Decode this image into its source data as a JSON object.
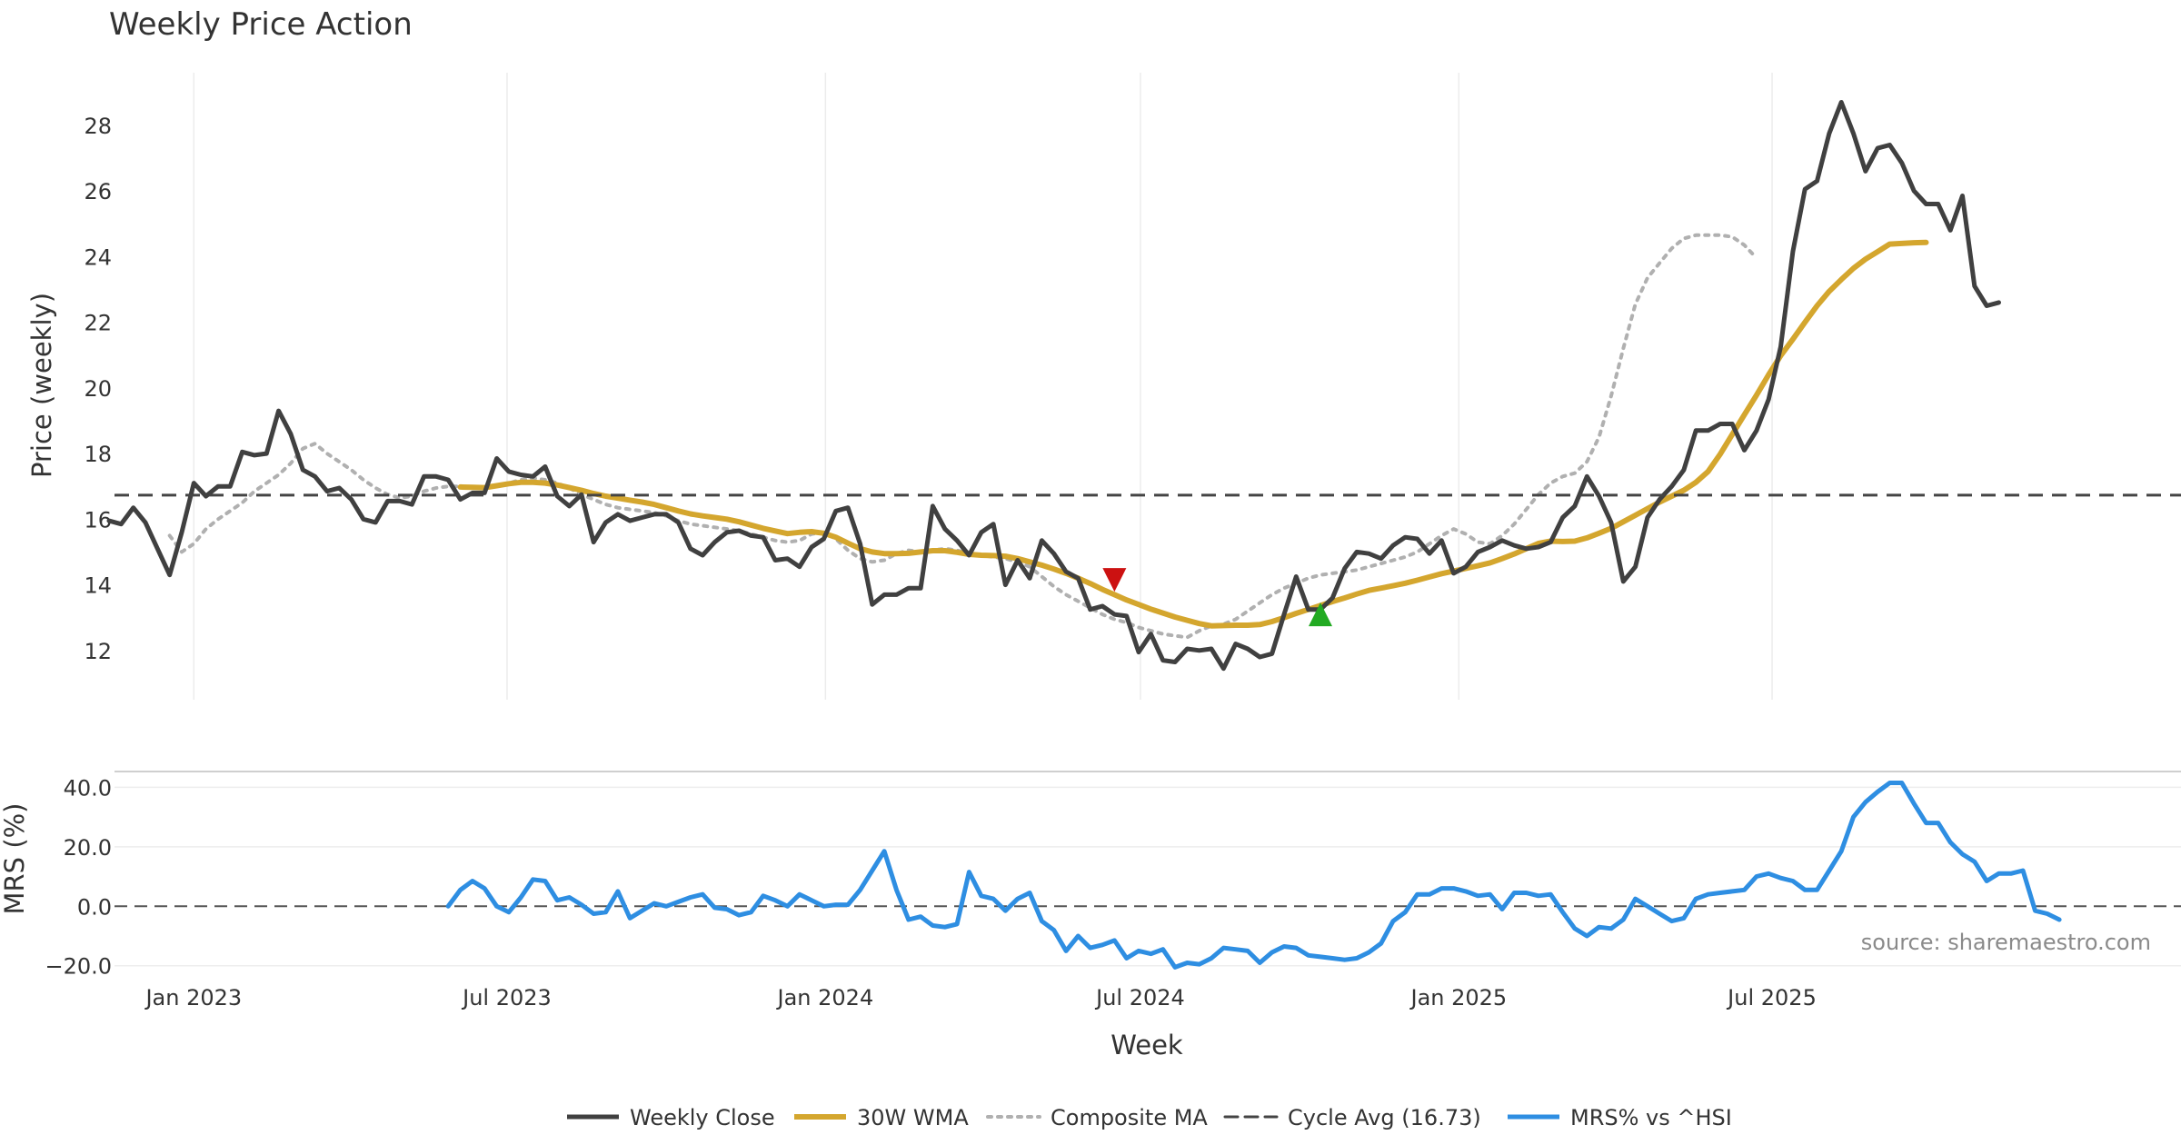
{
  "chart_data": [
    {
      "type": "line",
      "title": "Weekly Price Action",
      "ylabel": "Price (weekly)",
      "xlabel": "Week",
      "ylim": [
        10.5,
        29.6
      ],
      "yticks": [
        12,
        14,
        16,
        18,
        20,
        22,
        24,
        26,
        28
      ],
      "grid": "vertical",
      "x_start": "2022-11-13",
      "x_step_days": 7,
      "x_month_ticks": [
        {
          "label": "Jan 2023",
          "date": "2023-01-01"
        },
        {
          "label": "Jul 2023",
          "date": "2023-07-01"
        },
        {
          "label": "Jan 2024",
          "date": "2024-01-01"
        },
        {
          "label": "Jul 2024",
          "date": "2024-07-01"
        },
        {
          "label": "Jan 2025",
          "date": "2025-01-01"
        },
        {
          "label": "Jul 2025",
          "date": "2025-07-01"
        }
      ],
      "series": [
        {
          "name": "Weekly Close",
          "color": "#404040",
          "values": [
            15.95,
            15.85,
            16.35,
            15.9,
            15.1,
            14.3,
            15.6,
            17.1,
            16.7,
            17.0,
            17.0,
            18.05,
            17.95,
            18.0,
            19.3,
            18.6,
            17.5,
            17.3,
            16.85,
            16.95,
            16.6,
            16.0,
            15.9,
            16.55,
            16.55,
            16.45,
            17.3,
            17.3,
            17.2,
            16.6,
            16.8,
            16.8,
            17.85,
            17.45,
            17.35,
            17.3,
            17.6,
            16.7,
            16.4,
            16.75,
            15.3,
            15.9,
            16.15,
            15.95,
            16.05,
            16.15,
            16.15,
            15.9,
            15.1,
            14.9,
            15.3,
            15.6,
            15.65,
            15.5,
            15.45,
            14.75,
            14.8,
            14.55,
            15.15,
            15.4,
            16.25,
            16.35,
            15.25,
            13.4,
            13.7,
            13.7,
            13.9,
            13.9,
            16.4,
            15.7,
            15.35,
            14.9,
            15.6,
            15.85,
            14.0,
            14.75,
            14.2,
            15.35,
            14.95,
            14.4,
            14.2,
            13.25,
            13.35,
            13.1,
            13.05,
            11.95,
            12.5,
            11.7,
            11.65,
            12.05,
            12.0,
            12.05,
            11.45,
            12.2,
            12.05,
            11.8,
            11.9,
            13.1,
            14.25,
            13.25,
            13.25,
            13.6,
            14.5,
            15.0,
            14.95,
            14.8,
            15.2,
            15.45,
            15.4,
            14.95,
            15.35,
            14.35,
            14.55,
            15.0,
            15.15,
            15.35,
            15.2,
            15.1,
            15.15,
            15.3,
            16.05,
            16.4,
            17.3,
            16.7,
            15.9,
            14.1,
            14.55,
            16.05,
            16.6,
            17.0,
            17.5,
            18.7,
            18.7,
            18.9,
            18.9,
            18.1,
            18.7,
            19.65,
            21.25,
            24.15,
            26.05,
            26.3,
            27.75,
            28.7,
            27.75,
            26.6,
            27.3,
            27.4,
            26.85,
            26.0,
            25.6,
            25.6,
            24.8,
            25.85,
            23.1,
            22.5,
            22.6
          ]
        },
        {
          "name": "30W WMA",
          "color": "#d4a62e",
          "offset": 29,
          "values": [
            16.98,
            16.97,
            16.96,
            17.02,
            17.08,
            17.12,
            17.12,
            17.1,
            17.04,
            16.96,
            16.88,
            16.78,
            16.7,
            16.64,
            16.58,
            16.52,
            16.45,
            16.35,
            16.25,
            16.16,
            16.1,
            16.05,
            16.0,
            15.92,
            15.82,
            15.72,
            15.64,
            15.56,
            15.6,
            15.62,
            15.57,
            15.45,
            15.27,
            15.1,
            15.0,
            14.95,
            14.95,
            14.96,
            15.0,
            15.04,
            15.04,
            14.99,
            14.93,
            14.9,
            14.89,
            14.87,
            14.8,
            14.7,
            14.6,
            14.48,
            14.35,
            14.2,
            14.04,
            13.86,
            13.7,
            13.54,
            13.4,
            13.26,
            13.14,
            13.02,
            12.92,
            12.82,
            12.75,
            12.76,
            12.77,
            12.77,
            12.79,
            12.88,
            13.0,
            13.13,
            13.25,
            13.37,
            13.49,
            13.6,
            13.72,
            13.83,
            13.9,
            13.97,
            14.05,
            14.14,
            14.24,
            14.34,
            14.42,
            14.5,
            14.58,
            14.67,
            14.8,
            14.94,
            15.1,
            15.26,
            15.33,
            15.32,
            15.33,
            15.43,
            15.57,
            15.72,
            15.92,
            16.12,
            16.32,
            16.52,
            16.7,
            16.88,
            17.12,
            17.45,
            17.98,
            18.58,
            19.18,
            19.78,
            20.4,
            20.98,
            21.48,
            22.0,
            22.5,
            22.94,
            23.3,
            23.64,
            23.92,
            24.15,
            24.38,
            24.4,
            24.42,
            24.43
          ]
        },
        {
          "name": "Composite MA",
          "color": "#b0b0b0",
          "offset": 5,
          "values": [
            15.5,
            15.0,
            15.25,
            15.7,
            16.0,
            16.25,
            16.5,
            16.85,
            17.1,
            17.35,
            17.7,
            18.15,
            18.3,
            18.0,
            17.75,
            17.5,
            17.2,
            16.95,
            16.75,
            16.65,
            16.7,
            16.85,
            16.95,
            17.0,
            17.0,
            16.95,
            16.95,
            17.0,
            17.1,
            17.2,
            17.25,
            17.2,
            17.1,
            16.95,
            16.75,
            16.6,
            16.45,
            16.35,
            16.3,
            16.25,
            16.2,
            16.1,
            15.95,
            15.85,
            15.8,
            15.75,
            15.7,
            15.65,
            15.55,
            15.45,
            15.35,
            15.3,
            15.35,
            15.55,
            15.6,
            15.4,
            15.05,
            14.8,
            14.7,
            14.75,
            14.95,
            15.05,
            15.0,
            15.05,
            15.1,
            15.05,
            14.95,
            14.9,
            14.85,
            14.8,
            14.7,
            14.55,
            14.25,
            13.95,
            13.7,
            13.5,
            13.3,
            13.1,
            12.95,
            12.85,
            12.7,
            12.6,
            12.5,
            12.45,
            12.4,
            12.6,
            12.75,
            12.8,
            12.95,
            13.2,
            13.45,
            13.7,
            13.9,
            14.05,
            14.2,
            14.3,
            14.35,
            14.4,
            14.45,
            14.55,
            14.65,
            14.75,
            14.85,
            15.0,
            15.25,
            15.5,
            15.7,
            15.55,
            15.3,
            15.25,
            15.5,
            15.85,
            16.3,
            16.75,
            17.1,
            17.3,
            17.4,
            17.75,
            18.5,
            19.75,
            21.2,
            22.55,
            23.35,
            23.8,
            24.25,
            24.55,
            24.65,
            24.65,
            24.65,
            24.6,
            24.35,
            23.95
          ]
        }
      ],
      "hlines": [
        {
          "name": "Cycle Avg (16.73)",
          "value": 16.73,
          "color": "#444444",
          "style": "dashed"
        }
      ],
      "markers": [
        {
          "type": "sell",
          "week_index": 83,
          "value": 14.15,
          "color": "#cc1111"
        },
        {
          "type": "buy",
          "week_index": 100,
          "value": 13.1,
          "color": "#22aa22"
        }
      ]
    },
    {
      "type": "line",
      "ylabel": "MRS (%)",
      "ylim": [
        -21,
        45
      ],
      "ytick_values": [
        -20,
        0,
        20,
        40
      ],
      "ytick_labels": [
        "−20.0",
        "0.0",
        "20.0",
        "40.0"
      ],
      "zero_line": "dashed",
      "source_text": "source: sharemaestro.com",
      "series": [
        {
          "name": "MRS% vs ^HSI",
          "color": "#2e8ee2",
          "offset": 28,
          "values": [
            0.0,
            5.5,
            8.5,
            6.0,
            0.0,
            -2.0,
            3.0,
            9.0,
            8.5,
            2.0,
            3.0,
            0.5,
            -2.5,
            -2.0,
            5.0,
            -4.0,
            -1.5,
            1.0,
            0.0,
            1.5,
            3.0,
            4.0,
            -0.5,
            -1.0,
            -3.0,
            -2.0,
            3.5,
            2.0,
            0.0,
            4.0,
            2.0,
            0.0,
            0.5,
            0.5,
            5.5,
            12.0,
            18.5,
            5.5,
            -4.5,
            -3.5,
            -6.5,
            -7.0,
            -6.0,
            11.5,
            3.5,
            2.5,
            -1.5,
            2.5,
            4.5,
            -5.0,
            -8.0,
            -15.0,
            -10.0,
            -14.0,
            -13.0,
            -11.5,
            -17.5,
            -15.0,
            -16.0,
            -14.5,
            -20.5,
            -19.0,
            -19.5,
            -17.5,
            -14.0,
            -14.5,
            -15.0,
            -19.0,
            -15.5,
            -13.5,
            -14.0,
            -16.5,
            -17.0,
            -17.5,
            -18.0,
            -17.5,
            -15.5,
            -12.5,
            -5.0,
            -2.0,
            4.0,
            4.0,
            6.0,
            6.0,
            5.0,
            3.5,
            4.0,
            -1.0,
            4.5,
            4.5,
            3.5,
            4.0,
            -2.0,
            -7.5,
            -10.0,
            -7.0,
            -7.5,
            -4.5,
            2.5,
            0.0,
            -2.5,
            -5.0,
            -4.0,
            2.5,
            4.0,
            4.5,
            5.0,
            5.5,
            10.0,
            11.0,
            9.5,
            8.5,
            5.5,
            5.5,
            12.0,
            18.5,
            30.0,
            35.0,
            38.5,
            41.5,
            41.5,
            34.5,
            28.0,
            28.0,
            21.5,
            17.5,
            15.0,
            8.5,
            11.0,
            11.0,
            12.0,
            -1.5,
            -2.5,
            -4.5
          ]
        }
      ]
    }
  ],
  "legend": [
    {
      "label": "Weekly Close",
      "color": "#404040",
      "style": "solid",
      "width": 5
    },
    {
      "label": "30W WMA",
      "color": "#d4a62e",
      "style": "solid",
      "width": 6
    },
    {
      "label": "Composite MA",
      "color": "#b0b0b0",
      "style": "dotted",
      "width": 4
    },
    {
      "label": "Cycle Avg (16.73)",
      "color": "#444444",
      "style": "dashed",
      "width": 3
    },
    {
      "label": "MRS% vs ^HSI",
      "color": "#2e8ee2",
      "style": "solid",
      "width": 5
    }
  ]
}
